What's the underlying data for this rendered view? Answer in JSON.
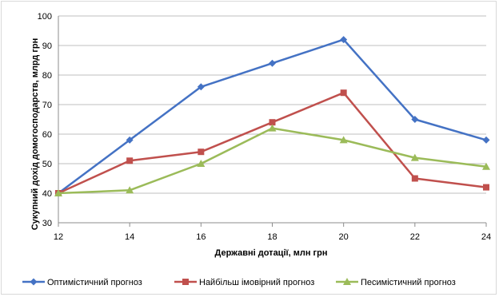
{
  "chart_data": {
    "type": "line",
    "title": "",
    "xlabel": "Державні дотації, млн грн",
    "ylabel": "Сукупний дохід домогосподарств, млрд грн",
    "x": [
      12,
      14,
      16,
      18,
      20,
      22,
      24
    ],
    "xlim": [
      12,
      24
    ],
    "xticks": [
      12,
      14,
      16,
      18,
      20,
      22,
      24
    ],
    "ylim": [
      30,
      100
    ],
    "yticks": [
      30,
      40,
      50,
      60,
      70,
      80,
      90,
      100
    ],
    "grid": "horizontal",
    "legend_position": "bottom",
    "series": [
      {
        "name": "Оптимістичний прогноз",
        "color": "#4472C4",
        "marker": "diamond",
        "values": [
          40,
          58,
          76,
          84,
          92,
          65,
          58
        ]
      },
      {
        "name": "Найбільш імовірний прогноз",
        "color": "#C0504D",
        "marker": "square",
        "values": [
          40,
          51,
          54,
          64,
          74,
          45,
          42
        ]
      },
      {
        "name": "Песимістичний прогноз",
        "color": "#9BBB59",
        "marker": "triangle",
        "values": [
          40,
          41,
          50,
          62,
          58,
          52,
          49
        ]
      }
    ]
  }
}
